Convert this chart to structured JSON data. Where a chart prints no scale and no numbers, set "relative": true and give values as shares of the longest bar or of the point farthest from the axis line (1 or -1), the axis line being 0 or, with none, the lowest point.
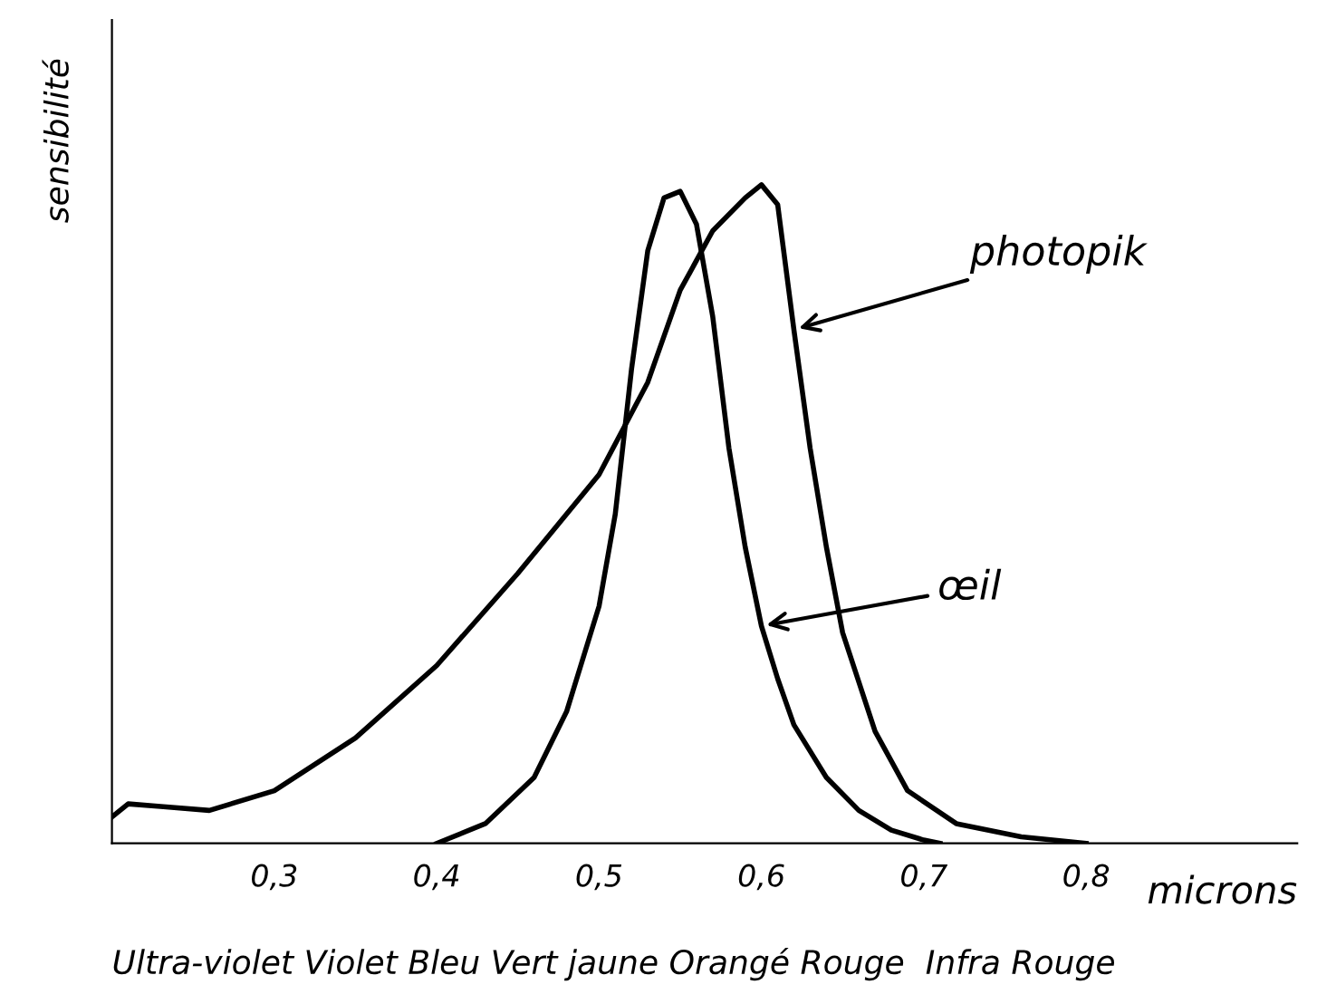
{
  "chart_data": {
    "type": "line",
    "relative": true,
    "ylabel": "sensibilité",
    "xlabel": "microns",
    "xlim": [
      0.2,
      0.93
    ],
    "xticks": [
      {
        "value": 0.3,
        "label": "0,3"
      },
      {
        "value": 0.4,
        "label": "0,4"
      },
      {
        "value": 0.5,
        "label": "0,5"
      },
      {
        "value": 0.6,
        "label": "0,6"
      },
      {
        "value": 0.7,
        "label": "0,7"
      },
      {
        "value": 0.8,
        "label": "0,8"
      }
    ],
    "grid": false,
    "legend": false,
    "marker": "none",
    "line_style": "solid",
    "series": [
      {
        "color": "#000000",
        "x": [
          0.2,
          0.21,
          0.23,
          0.26,
          0.3,
          0.35,
          0.4,
          0.45,
          0.5,
          0.53,
          0.55,
          0.57,
          0.59,
          0.6,
          0.61,
          0.62,
          0.63,
          0.64,
          0.65,
          0.67,
          0.69,
          0.72,
          0.76,
          0.8
        ],
        "values": [
          0.04,
          0.06,
          0.056,
          0.05,
          0.08,
          0.16,
          0.27,
          0.41,
          0.56,
          0.7,
          0.84,
          0.93,
          0.98,
          1.0,
          0.97,
          0.78,
          0.6,
          0.45,
          0.32,
          0.17,
          0.08,
          0.03,
          0.01,
          0
        ]
      },
      {
        "color": "#000000",
        "x": [
          0.4,
          0.43,
          0.46,
          0.48,
          0.5,
          0.51,
          0.52,
          0.53,
          0.54,
          0.55,
          0.56,
          0.57,
          0.58,
          0.59,
          0.6,
          0.61,
          0.62,
          0.64,
          0.66,
          0.68,
          0.7,
          0.71
        ],
        "values": [
          0,
          0.03,
          0.1,
          0.2,
          0.36,
          0.5,
          0.72,
          0.9,
          0.98,
          0.99,
          0.94,
          0.8,
          0.6,
          0.45,
          0.33,
          0.25,
          0.18,
          0.1,
          0.05,
          0.02,
          0.005,
          0
        ]
      }
    ],
    "annotations": [
      {
        "text": "photopik",
        "x": 0.62,
        "y": 0.78
      },
      {
        "text": "œil",
        "x": 0.6,
        "y": 0.33
      },
      "Ultra-violet Violet Bleu Vert jaune Orangé Rouge  Infra Rouge"
    ]
  }
}
